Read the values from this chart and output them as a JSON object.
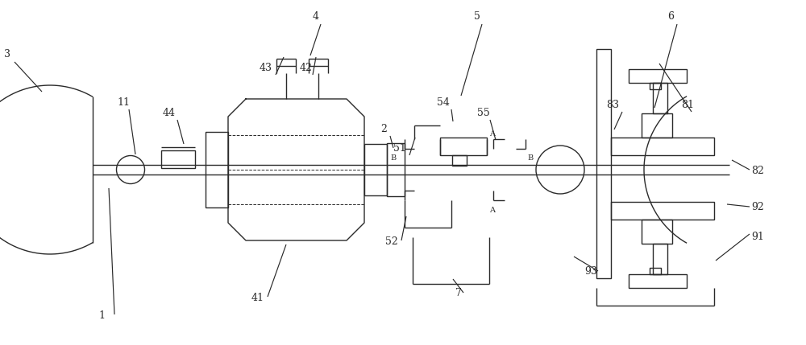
{
  "bg_color": "#ffffff",
  "line_color": "#2a2a2a",
  "lw": 1.0,
  "fig_w": 10.0,
  "fig_h": 4.29,
  "xlim": [
    0,
    10
  ],
  "ylim": [
    0,
    4.29
  ]
}
